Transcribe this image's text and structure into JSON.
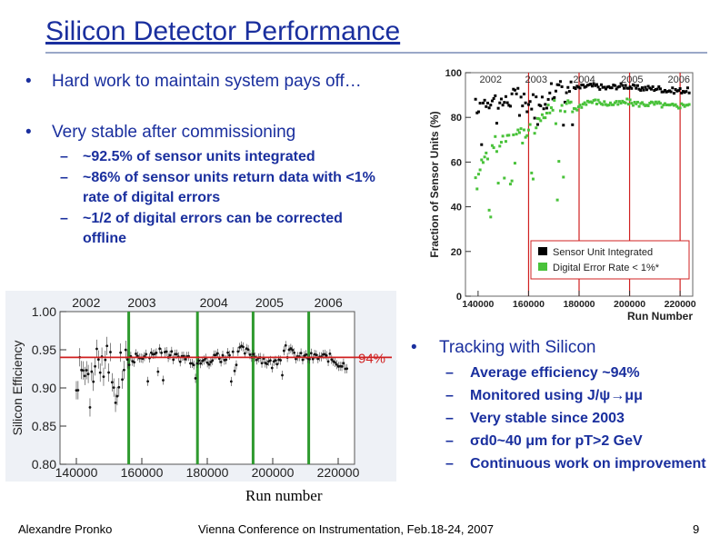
{
  "title": "Silicon Detector Performance",
  "bullets": [
    {
      "text": "Hard work to maintain system pays off…"
    },
    {
      "text": "Very stable after commissioning"
    }
  ],
  "sub_bullets": [
    "~92.5% of sensor units integrated",
    "~86% of sensor units return data with <1% rate of digital errors",
    "~1/2 of digital errors can be corrected offline"
  ],
  "tracking": {
    "heading": "Tracking with Silicon",
    "items": [
      "Average efficiency ~94%",
      "Monitored using J/ψ→μμ",
      "Very stable since 2003",
      "σd0~40 μm for pT>2 GeV",
      "Continuous work on improvement"
    ]
  },
  "bullet_marks": {
    "main": "•",
    "sub": "–"
  },
  "run_number_caption": "Run number",
  "footer": {
    "author": "Alexandre Pronko",
    "conference": "Vienna Conference on Instrumentation, Feb.18-24, 2007",
    "page": "9"
  },
  "colors": {
    "title": "#1a2f9e",
    "integrated": "#000000",
    "digital": "#49c23a",
    "boundary": "#d02020",
    "efficiency_green": "#2e9a2e"
  },
  "chart_data": [
    {
      "type": "scatter",
      "ylabel": "Fraction of Sensor Units (%)",
      "xlabel": "Run Number",
      "xlim": [
        135000,
        225000
      ],
      "ylim": [
        0,
        100
      ],
      "x_ticks": [
        "140000",
        "160000",
        "180000",
        "200000",
        "220000"
      ],
      "y_ticks": [
        "0",
        "20",
        "40",
        "60",
        "80",
        "100"
      ],
      "year_labels": [
        "2002",
        "2003",
        "2004",
        "2005",
        "2006"
      ],
      "year_boundaries": [
        160000,
        180000,
        200000,
        220000
      ],
      "legend": [
        "Sensor Unit Integrated",
        "Digital Error Rate < 1%*"
      ],
      "series": [
        {
          "name": "Sensor Unit Integrated",
          "x": [
            139000,
            143000,
            147000,
            151000,
            155000,
            159000,
            163000,
            167000,
            171000,
            175000,
            179000,
            183000,
            187000,
            191000,
            195000,
            199000,
            203000,
            207000,
            211000,
            215000,
            219000,
            223000
          ],
          "y": [
            85,
            88,
            88,
            87,
            90,
            86,
            88,
            90,
            93,
            93,
            93,
            94,
            94,
            93,
            94,
            94,
            93,
            93,
            93,
            92,
            92,
            92
          ]
        },
        {
          "name": "Digital Error Rate < 1%*",
          "x": [
            139000,
            143000,
            147000,
            151000,
            155000,
            159000,
            163000,
            167000,
            171000,
            175000,
            179000,
            183000,
            187000,
            191000,
            195000,
            199000,
            203000,
            207000,
            211000,
            215000,
            219000,
            223000
          ],
          "y": [
            56,
            62,
            68,
            72,
            75,
            70,
            78,
            82,
            86,
            85,
            84,
            87,
            87,
            86,
            86,
            87,
            86,
            86,
            86,
            85,
            85,
            86
          ]
        }
      ]
    },
    {
      "type": "scatter",
      "ylabel": "Silicon Efficiency",
      "xlabel": "Run number",
      "xlim": [
        135000,
        225000
      ],
      "ylim": [
        0.8,
        1.0
      ],
      "x_ticks": [
        "140000",
        "160000",
        "180000",
        "200000",
        "220000"
      ],
      "y_ticks": [
        "0.80",
        "0.85",
        "0.90",
        "0.95",
        "1.00"
      ],
      "year_labels": [
        "2002",
        "2003",
        "2004",
        "2005",
        "2006"
      ],
      "year_boundaries": [
        156000,
        177000,
        194000,
        211000
      ],
      "reference_label": "94%",
      "reference_value": 0.94,
      "series": [
        {
          "name": "Silicon Efficiency",
          "x": [
            140000,
            142000,
            144000,
            146000,
            148000,
            150000,
            152000,
            154000,
            158000,
            162000,
            166000,
            170000,
            174000,
            178000,
            182000,
            186000,
            190000,
            196000,
            200000,
            204000,
            208000,
            213000,
            217000,
            221000
          ],
          "y": [
            0.91,
            0.93,
            0.89,
            0.95,
            0.92,
            0.94,
            0.9,
            0.93,
            0.94,
            0.94,
            0.95,
            0.94,
            0.94,
            0.93,
            0.94,
            0.94,
            0.95,
            0.94,
            0.93,
            0.95,
            0.94,
            0.94,
            0.94,
            0.93
          ]
        }
      ]
    }
  ]
}
